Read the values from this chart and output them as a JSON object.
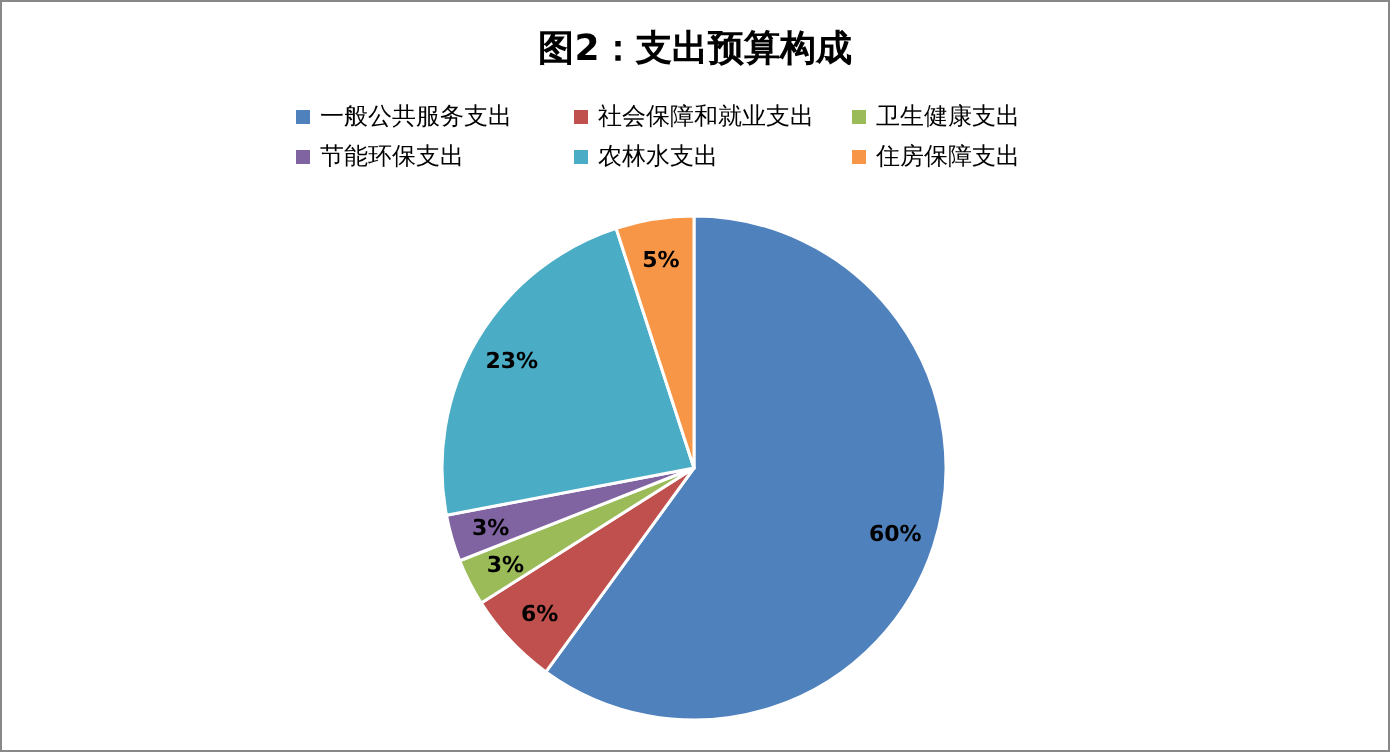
{
  "chart_data": {
    "type": "pie",
    "title": "图2：支出预算构成",
    "categories": [
      "一般公共服务支出",
      "社会保障和就业支出",
      "卫生健康支出",
      "节能环保支出",
      "农林水支出",
      "住房保障支出"
    ],
    "values": [
      60,
      6,
      3,
      3,
      23,
      5
    ],
    "colors": [
      "#4f81bd",
      "#c0504d",
      "#9bbb59",
      "#8064a2",
      "#4bacc6",
      "#f79646"
    ],
    "value_labels": [
      "60%",
      "6%",
      "3%",
      "3%",
      "23%",
      "5%"
    ],
    "legend": "top"
  }
}
